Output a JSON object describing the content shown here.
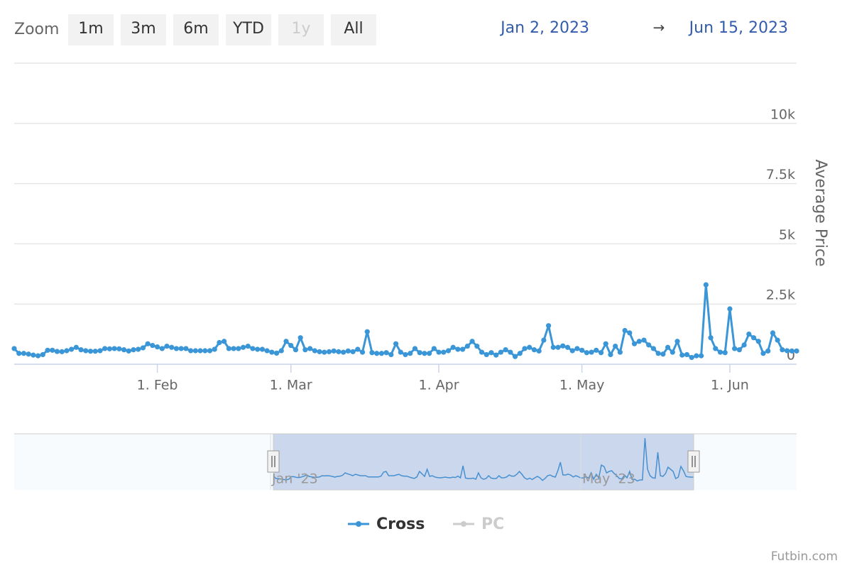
{
  "chart_data": {
    "type": "line",
    "zoom_label": "Zoom",
    "zoom_buttons": [
      {
        "label": "1m"
      },
      {
        "label": "3m"
      },
      {
        "label": "6m"
      },
      {
        "label": "YTD"
      },
      {
        "label": "1y",
        "disabled": true
      },
      {
        "label": "All"
      }
    ],
    "range_from": "Jan 2, 2023",
    "range_separator": "→",
    "range_to": "Jun 15, 2023",
    "y_label": "Average Price",
    "credits": "Futbin.com",
    "navigator_labels": [
      {
        "value": "2023-01-01",
        "label": "Jan '23"
      },
      {
        "value": "2023-05-01",
        "label": "May '23"
      }
    ],
    "xlim": [
      "2023-01-02",
      "2023-06-15"
    ],
    "xticks": [
      {
        "value": "2023-02-01",
        "label": "1. Feb"
      },
      {
        "value": "2023-03-01",
        "label": "1. Mar"
      },
      {
        "value": "2023-04-01",
        "label": "1. Apr"
      },
      {
        "value": "2023-05-01",
        "label": "1. May"
      },
      {
        "value": "2023-06-01",
        "label": "1. Jun"
      }
    ],
    "ylim": [
      0,
      12500
    ],
    "yticks": [
      0,
      {
        "value": 2500,
        "label": "2.5k"
      },
      {
        "value": 5000,
        "label": "5k"
      },
      {
        "value": 7500,
        "label": "7.5k"
      },
      {
        "value": 10000,
        "label": "10k"
      },
      {
        "value": 12500,
        "label": ""
      }
    ],
    "grid": true,
    "x": [
      "2023-01-02",
      "2023-01-03",
      "2023-01-04",
      "2023-01-05",
      "2023-01-06",
      "2023-01-07",
      "2023-01-08",
      "2023-01-09",
      "2023-01-10",
      "2023-01-11",
      "2023-01-12",
      "2023-01-13",
      "2023-01-14",
      "2023-01-15",
      "2023-01-16",
      "2023-01-17",
      "2023-01-18",
      "2023-01-19",
      "2023-01-20",
      "2023-01-21",
      "2023-01-22",
      "2023-01-23",
      "2023-01-24",
      "2023-01-25",
      "2023-01-26",
      "2023-01-27",
      "2023-01-28",
      "2023-01-29",
      "2023-01-30",
      "2023-01-31",
      "2023-02-01",
      "2023-02-02",
      "2023-02-03",
      "2023-02-04",
      "2023-02-05",
      "2023-02-06",
      "2023-02-07",
      "2023-02-08",
      "2023-02-09",
      "2023-02-10",
      "2023-02-11",
      "2023-02-12",
      "2023-02-13",
      "2023-02-14",
      "2023-02-15",
      "2023-02-16",
      "2023-02-17",
      "2023-02-18",
      "2023-02-19",
      "2023-02-20",
      "2023-02-21",
      "2023-02-22",
      "2023-02-23",
      "2023-02-24",
      "2023-02-25",
      "2023-02-26",
      "2023-02-27",
      "2023-02-28",
      "2023-03-01",
      "2023-03-02",
      "2023-03-03",
      "2023-03-04",
      "2023-03-05",
      "2023-03-06",
      "2023-03-07",
      "2023-03-08",
      "2023-03-09",
      "2023-03-10",
      "2023-03-11",
      "2023-03-12",
      "2023-03-13",
      "2023-03-14",
      "2023-03-15",
      "2023-03-16",
      "2023-03-17",
      "2023-03-18",
      "2023-03-19",
      "2023-03-20",
      "2023-03-21",
      "2023-03-22",
      "2023-03-23",
      "2023-03-24",
      "2023-03-25",
      "2023-03-26",
      "2023-03-27",
      "2023-03-28",
      "2023-03-29",
      "2023-03-30",
      "2023-03-31",
      "2023-04-01",
      "2023-04-02",
      "2023-04-03",
      "2023-04-04",
      "2023-04-05",
      "2023-04-06",
      "2023-04-07",
      "2023-04-08",
      "2023-04-09",
      "2023-04-10",
      "2023-04-11",
      "2023-04-12",
      "2023-04-13",
      "2023-04-14",
      "2023-04-15",
      "2023-04-16",
      "2023-04-17",
      "2023-04-18",
      "2023-04-19",
      "2023-04-20",
      "2023-04-21",
      "2023-04-22",
      "2023-04-23",
      "2023-04-24",
      "2023-04-25",
      "2023-04-26",
      "2023-04-27",
      "2023-04-28",
      "2023-04-29",
      "2023-04-30",
      "2023-05-01",
      "2023-05-02",
      "2023-05-03",
      "2023-05-04",
      "2023-05-05",
      "2023-05-06",
      "2023-05-07",
      "2023-05-08",
      "2023-05-09",
      "2023-05-10",
      "2023-05-11",
      "2023-05-12",
      "2023-05-13",
      "2023-05-14",
      "2023-05-15",
      "2023-05-16",
      "2023-05-17",
      "2023-05-18",
      "2023-05-19",
      "2023-05-20",
      "2023-05-21",
      "2023-05-22",
      "2023-05-23",
      "2023-05-24",
      "2023-05-25",
      "2023-05-26",
      "2023-05-27",
      "2023-05-28",
      "2023-05-29",
      "2023-05-30",
      "2023-05-31",
      "2023-06-01",
      "2023-06-02",
      "2023-06-03",
      "2023-06-04",
      "2023-06-05",
      "2023-06-06",
      "2023-06-07",
      "2023-06-08",
      "2023-06-09",
      "2023-06-10",
      "2023-06-11",
      "2023-06-12",
      "2023-06-13",
      "2023-06-14",
      "2023-06-15"
    ],
    "series": [
      {
        "name": "Cross",
        "color": "#3a96d6",
        "values": [
          650,
          450,
          450,
          420,
          380,
          350,
          400,
          580,
          580,
          530,
          520,
          560,
          620,
          700,
          600,
          560,
          540,
          540,
          560,
          650,
          640,
          650,
          640,
          600,
          550,
          600,
          620,
          680,
          850,
          780,
          720,
          650,
          750,
          700,
          650,
          650,
          650,
          560,
          560,
          560,
          560,
          560,
          620,
          900,
          950,
          650,
          650,
          650,
          700,
          750,
          650,
          620,
          620,
          560,
          500,
          460,
          560,
          950,
          780,
          600,
          1100,
          600,
          650,
          560,
          520,
          500,
          520,
          550,
          520,
          500,
          550,
          520,
          620,
          500,
          1350,
          480,
          450,
          450,
          480,
          400,
          850,
          500,
          400,
          450,
          650,
          480,
          450,
          450,
          650,
          500,
          500,
          560,
          700,
          620,
          620,
          750,
          950,
          750,
          500,
          400,
          480,
          380,
          500,
          600,
          500,
          320,
          450,
          650,
          700,
          600,
          550,
          1000,
          1600,
          700,
          700,
          760,
          700,
          560,
          650,
          580,
          480,
          500,
          580,
          480,
          850,
          400,
          750,
          500,
          1400,
          1300,
          850,
          950,
          1000,
          800,
          650,
          450,
          420,
          700,
          500,
          950,
          380,
          400,
          280,
          350,
          350,
          3300,
          1100,
          650,
          500,
          480,
          2300,
          650,
          600,
          800,
          1250,
          1100,
          950,
          450,
          550,
          1300,
          1000,
          600,
          560,
          550,
          550
        ]
      },
      {
        "name": "PC",
        "color": "#cccccc",
        "visible": false
      }
    ]
  }
}
